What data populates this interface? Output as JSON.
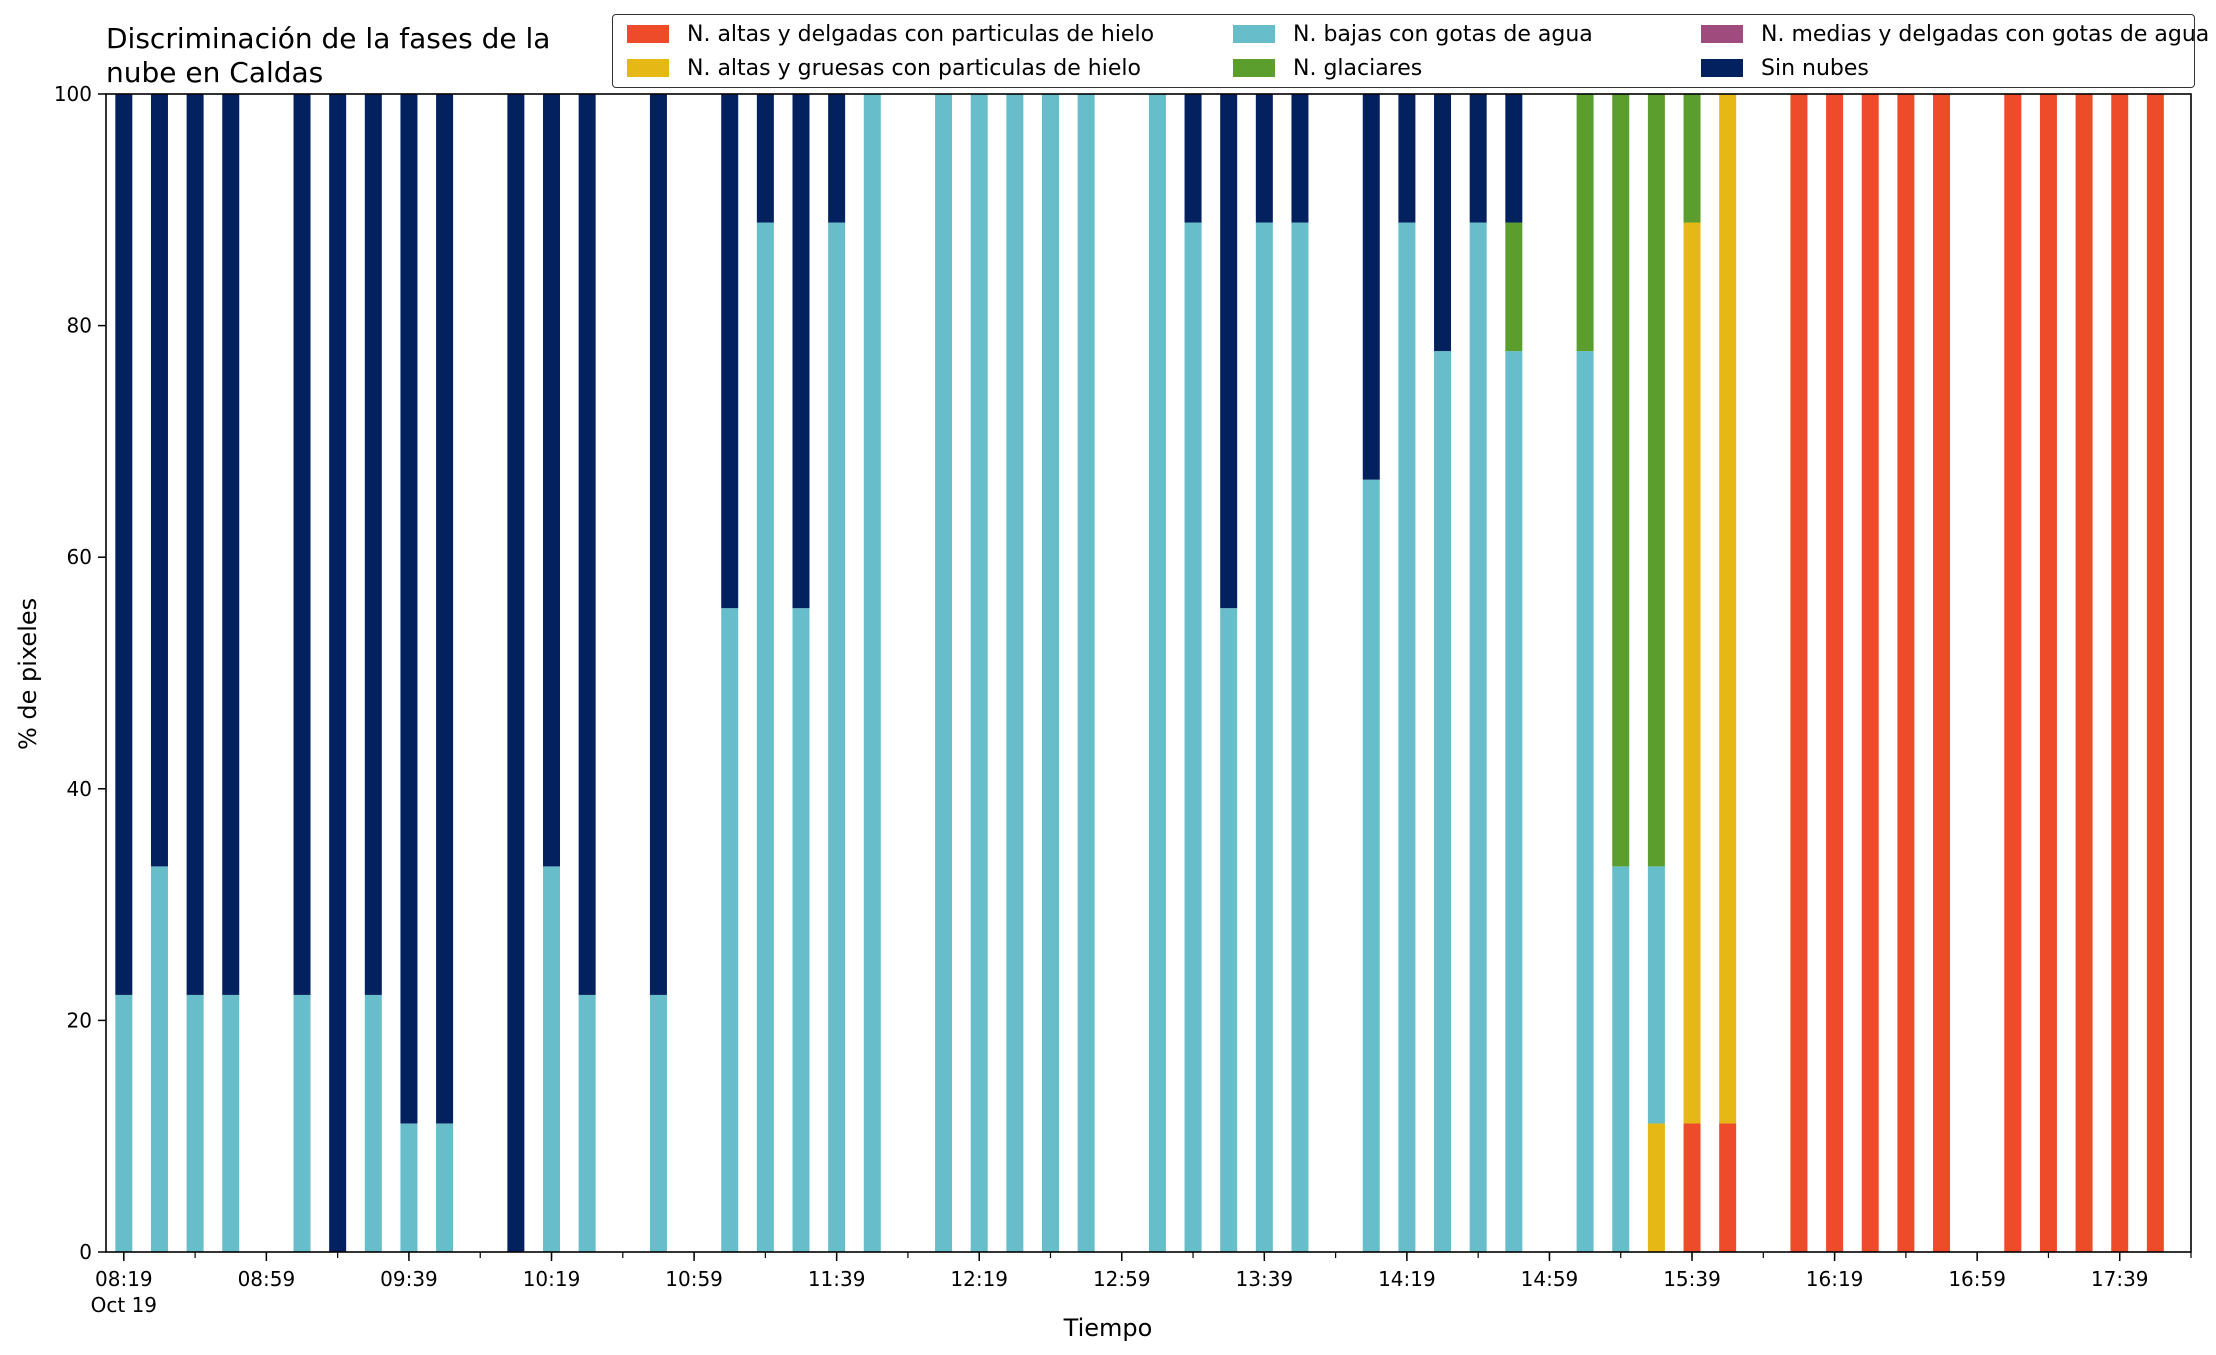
{
  "chart_data": {
    "type": "bar",
    "stacked": true,
    "title": "Discriminación de la fases de la nube en Caldas",
    "xlabel": "Tiempo",
    "ylabel": "% de pixeles",
    "ylim": [
      0,
      100
    ],
    "yticks": [
      "0",
      "20",
      "40",
      "60",
      "80",
      "100"
    ],
    "xticks": [
      {
        "label": "08:19",
        "sub": "Oct 19"
      },
      {
        "label": "08:59",
        "sub": ""
      },
      {
        "label": "09:39",
        "sub": ""
      },
      {
        "label": "10:19",
        "sub": ""
      },
      {
        "label": "10:59",
        "sub": ""
      },
      {
        "label": "11:39",
        "sub": ""
      },
      {
        "label": "12:19",
        "sub": ""
      },
      {
        "label": "12:59",
        "sub": ""
      },
      {
        "label": "13:39",
        "sub": ""
      },
      {
        "label": "14:19",
        "sub": ""
      },
      {
        "label": "14:59",
        "sub": ""
      },
      {
        "label": "15:39",
        "sub": ""
      },
      {
        "label": "16:19",
        "sub": ""
      },
      {
        "label": "16:59",
        "sub": ""
      },
      {
        "label": "17:39",
        "sub": ""
      }
    ],
    "legend_location": "top-right",
    "grid": false,
    "series": [
      {
        "name": "N. altas y delgadas con particulas de hielo",
        "color": "#ee4b2b"
      },
      {
        "name": "N. altas y gruesas con particulas de hielo",
        "color": "#e6b816"
      },
      {
        "name": "N. bajas con gotas de agua",
        "color": "#67bdc9"
      },
      {
        "name": "N. glaciares",
        "color": "#5c9e2e"
      },
      {
        "name": "N. medias y delgadas con gotas de agua",
        "color": "#a04b7e"
      },
      {
        "name": "Sin nubes",
        "color": "#03205f"
      }
    ],
    "bars": [
      {
        "time": "08:19",
        "values": [
          0,
          0,
          22.2,
          0,
          0,
          77.8
        ]
      },
      {
        "time": "08:29",
        "values": [
          0,
          0,
          33.3,
          0,
          0,
          66.7
        ]
      },
      {
        "time": "08:39",
        "values": [
          0,
          0,
          22.2,
          0,
          0,
          77.8
        ]
      },
      {
        "time": "08:49",
        "values": [
          0,
          0,
          22.2,
          0,
          0,
          77.8
        ]
      },
      {
        "time": "09:09",
        "values": [
          0,
          0,
          22.2,
          0,
          0,
          77.8
        ]
      },
      {
        "time": "09:19",
        "values": [
          0,
          0,
          0,
          0,
          0,
          100
        ]
      },
      {
        "time": "09:29",
        "values": [
          0,
          0,
          22.2,
          0,
          0,
          77.8
        ]
      },
      {
        "time": "09:39",
        "values": [
          0,
          0,
          11.1,
          0,
          0,
          88.9
        ]
      },
      {
        "time": "09:49",
        "values": [
          0,
          0,
          11.1,
          0,
          0,
          88.9
        ]
      },
      {
        "time": "10:09",
        "values": [
          0,
          0,
          0,
          0,
          0,
          100
        ]
      },
      {
        "time": "10:19",
        "values": [
          0,
          0,
          33.3,
          0,
          0,
          66.7
        ]
      },
      {
        "time": "10:29",
        "values": [
          0,
          0,
          22.2,
          0,
          0,
          77.8
        ]
      },
      {
        "time": "10:49",
        "values": [
          0,
          0,
          22.2,
          0,
          0,
          77.8
        ]
      },
      {
        "time": "11:09",
        "values": [
          0,
          0,
          55.6,
          0,
          0,
          44.4
        ]
      },
      {
        "time": "11:19",
        "values": [
          0,
          0,
          88.9,
          0,
          0,
          11.1
        ]
      },
      {
        "time": "11:29",
        "values": [
          0,
          0,
          55.6,
          0,
          0,
          44.4
        ]
      },
      {
        "time": "11:39",
        "values": [
          0,
          0,
          88.9,
          0,
          0,
          11.1
        ]
      },
      {
        "time": "11:49",
        "values": [
          0,
          0,
          100,
          0,
          0,
          0
        ]
      },
      {
        "time": "12:09",
        "values": [
          0,
          0,
          100,
          0,
          0,
          0
        ]
      },
      {
        "time": "12:19",
        "values": [
          0,
          0,
          100,
          0,
          0,
          0
        ]
      },
      {
        "time": "12:29",
        "values": [
          0,
          0,
          100,
          0,
          0,
          0
        ]
      },
      {
        "time": "12:39",
        "values": [
          0,
          0,
          100,
          0,
          0,
          0
        ]
      },
      {
        "time": "12:49",
        "values": [
          0,
          0,
          100,
          0,
          0,
          0
        ]
      },
      {
        "time": "13:09",
        "values": [
          0,
          0,
          100,
          0,
          0,
          0
        ]
      },
      {
        "time": "13:19",
        "values": [
          0,
          0,
          88.9,
          0,
          0,
          11.1
        ]
      },
      {
        "time": "13:29",
        "values": [
          0,
          0,
          55.6,
          0,
          0,
          44.4
        ]
      },
      {
        "time": "13:39",
        "values": [
          0,
          0,
          88.9,
          0,
          0,
          11.1
        ]
      },
      {
        "time": "13:49",
        "values": [
          0,
          0,
          88.9,
          0,
          0,
          11.1
        ]
      },
      {
        "time": "14:09",
        "values": [
          0,
          0,
          66.7,
          0,
          0,
          33.3
        ]
      },
      {
        "time": "14:19",
        "values": [
          0,
          0,
          88.9,
          0,
          0,
          11.1
        ]
      },
      {
        "time": "14:29",
        "values": [
          0,
          0,
          77.8,
          0,
          0,
          22.2
        ]
      },
      {
        "time": "14:39",
        "values": [
          0,
          0,
          88.9,
          0,
          0,
          11.1
        ]
      },
      {
        "time": "14:49",
        "values": [
          0,
          0,
          77.8,
          11.1,
          0,
          11.1
        ]
      },
      {
        "time": "15:09",
        "values": [
          0,
          0,
          77.8,
          22.2,
          0,
          0
        ]
      },
      {
        "time": "15:19",
        "values": [
          0,
          0,
          33.3,
          66.7,
          0,
          0
        ]
      },
      {
        "time": "15:29",
        "values": [
          0,
          11.1,
          22.2,
          66.7,
          0,
          0
        ]
      },
      {
        "time": "15:39",
        "values": [
          11.1,
          77.8,
          0,
          11.1,
          0,
          0
        ]
      },
      {
        "time": "15:49",
        "values": [
          11.1,
          88.9,
          0,
          0,
          0,
          0
        ]
      },
      {
        "time": "16:09",
        "values": [
          100,
          0,
          0,
          0,
          0,
          0
        ]
      },
      {
        "time": "16:19",
        "values": [
          100,
          0,
          0,
          0,
          0,
          0
        ]
      },
      {
        "time": "16:29",
        "values": [
          100,
          0,
          0,
          0,
          0,
          0
        ]
      },
      {
        "time": "16:39",
        "values": [
          100,
          0,
          0,
          0,
          0,
          0
        ]
      },
      {
        "time": "16:49",
        "values": [
          100,
          0,
          0,
          0,
          0,
          0
        ]
      },
      {
        "time": "17:09",
        "values": [
          100,
          0,
          0,
          0,
          0,
          0
        ]
      },
      {
        "time": "17:19",
        "values": [
          100,
          0,
          0,
          0,
          0,
          0
        ]
      },
      {
        "time": "17:29",
        "values": [
          100,
          0,
          0,
          0,
          0,
          0
        ]
      },
      {
        "time": "17:39",
        "values": [
          100,
          0,
          0,
          0,
          0,
          0
        ]
      },
      {
        "time": "17:49",
        "values": [
          100,
          0,
          0,
          0,
          0,
          0
        ]
      }
    ]
  }
}
